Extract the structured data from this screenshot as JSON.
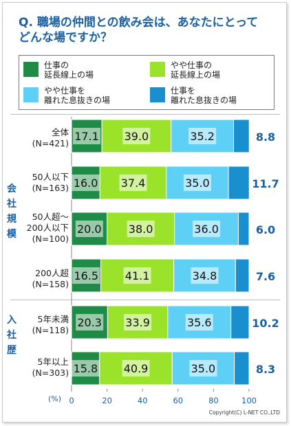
{
  "title": "Q. 職場の仲間との飲み会は、あなたにとって\nどんな場ですか？",
  "legend": [
    {
      "label": "仕事の\n延長線上の場",
      "color": "#1e8c46"
    },
    {
      "label": "やや仕事の\n延長線上の場",
      "color": "#9be22b"
    },
    {
      "label": "やや仕事を\n離れた息抜きの場",
      "color": "#5fd0f5"
    },
    {
      "label": "仕事を\n離れた息抜きの場",
      "color": "#1a8fd0"
    }
  ],
  "groups": [
    {
      "label": "会\n社\n規\n模"
    },
    {
      "label": "入\n社\n歴"
    }
  ],
  "categories": [
    "全体\n(N=421)",
    "50人以下\n(N=163)",
    "50人超～\n200人以下\n(N=100)",
    "200人超\n(N=158)",
    "5年未満\n(N=118)",
    "5年以上\n(N=303)"
  ],
  "axis_unit": "(%)",
  "copyright": "Copyright(C) L-NET CO.,LTD",
  "chart_data": {
    "type": "bar",
    "stacked": true,
    "orientation": "horizontal",
    "categories": [
      "全体(N=421)",
      "50人以下(N=163)",
      "50人超～200人以下(N=100)",
      "200人超(N=158)",
      "5年未満(N=118)",
      "5年以上(N=303)"
    ],
    "series": [
      {
        "name": "仕事の延長線上の場",
        "values": [
          17.1,
          16.0,
          20.0,
          16.5,
          20.3,
          15.8
        ],
        "labels": [
          "17.1",
          "16.0",
          "20.0",
          "16.5",
          "20.3",
          "15.8"
        ],
        "color": "#1e8c46"
      },
      {
        "name": "やや仕事の延長線上の場",
        "values": [
          39.0,
          37.4,
          38.0,
          41.1,
          33.9,
          40.9
        ],
        "labels": [
          "39.0",
          "37.4",
          "38.0",
          "41.1",
          "33.9",
          "40.9"
        ],
        "color": "#9be22b"
      },
      {
        "name": "やや仕事を離れた息抜きの場",
        "values": [
          35.2,
          35.0,
          36.0,
          34.8,
          35.6,
          35.0
        ],
        "labels": [
          "35.2",
          "35.0",
          "36.0",
          "34.8",
          "35.6",
          "35.0"
        ],
        "color": "#5fd0f5"
      },
      {
        "name": "仕事を離れた息抜きの場",
        "values": [
          8.8,
          11.7,
          6.0,
          7.6,
          10.2,
          8.3
        ],
        "labels": [
          "8.8",
          "11.7",
          "6.0",
          "7.6",
          "10.2",
          "8.3"
        ],
        "color": "#1a8fd0"
      }
    ],
    "xlim": [
      0,
      100
    ],
    "xticks": [
      "0",
      "20",
      "40",
      "60",
      "80",
      "100"
    ],
    "xlabel": "(%)",
    "legend_position": "top"
  }
}
